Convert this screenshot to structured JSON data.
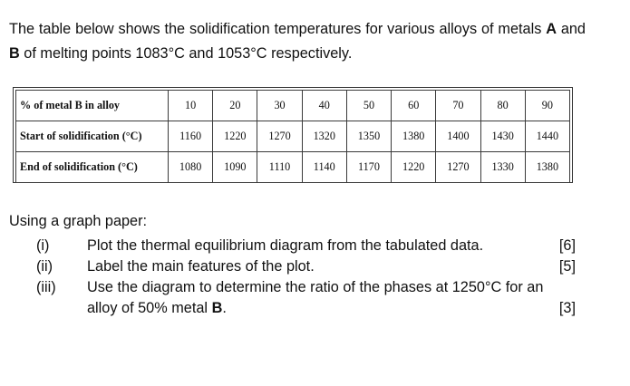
{
  "intro": {
    "part1": "The table below shows the solidification temperatures for various alloys of metals ",
    "metal_a": "A",
    "part2": " and ",
    "metal_b": "B",
    "part3": " of melting points 1083°C and 1053°C respectively."
  },
  "table": {
    "rows": [
      {
        "label": "% of metal B in alloy",
        "values": [
          "10",
          "20",
          "30",
          "40",
          "50",
          "60",
          "70",
          "80",
          "90"
        ]
      },
      {
        "label": "Start of solidification (°C)",
        "values": [
          "1160",
          "1220",
          "1270",
          "1320",
          "1350",
          "1380",
          "1400",
          "1430",
          "1440"
        ]
      },
      {
        "label": "End of solidification (°C)",
        "values": [
          "1080",
          "1090",
          "1110",
          "1140",
          "1170",
          "1220",
          "1270",
          "1330",
          "1380"
        ]
      }
    ]
  },
  "tasks": {
    "intro": "Using a graph paper:",
    "items": [
      {
        "num": "(i)",
        "text": "Plot the thermal equilibrium diagram from the tabulated data.",
        "marks": "[6]"
      },
      {
        "num": "(ii)",
        "text": "Label the main features of the plot.",
        "marks": "[5]"
      },
      {
        "num": "(iii)",
        "text": "Use the diagram to determine the ratio of the phases at 1250°C for an",
        "text_cont": "alloy of 50% metal ",
        "text_cont_bold": "B",
        "text_cont_end": ".",
        "marks": "[3]"
      }
    ]
  }
}
